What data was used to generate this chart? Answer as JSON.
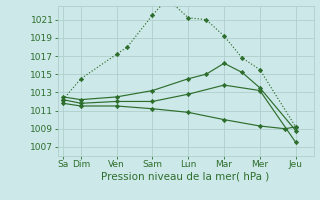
{
  "background_color": "#cde8e8",
  "grid_color": "#b0d0cc",
  "line_color": "#2d6e2d",
  "xlabel": "Pression niveau de la mer( hPa )",
  "xlabel_fontsize": 7.5,
  "tick_fontsize": 6.5,
  "yticks": [
    1007,
    1009,
    1011,
    1013,
    1015,
    1017,
    1019,
    1021
  ],
  "ylim": [
    1006.0,
    1022.5
  ],
  "xtick_labels": [
    "Sa",
    "Dim",
    "Ven",
    "Sam",
    "Lun",
    "Mar",
    "Mer",
    "Jeu"
  ],
  "xtick_positions": [
    0,
    0.5,
    1.5,
    2.5,
    3.5,
    4.5,
    5.5,
    6.5
  ],
  "xlim": [
    -0.15,
    7.0
  ],
  "lines": [
    {
      "style": "dotted",
      "x": [
        0,
        0.5,
        1.5,
        1.8,
        2.5,
        2.8,
        3.0,
        3.5,
        4.0,
        4.5,
        5.0,
        5.5,
        6.5
      ],
      "y": [
        1012.2,
        1014.5,
        1017.2,
        1018.0,
        1021.5,
        1022.8,
        1023.0,
        1021.2,
        1021.0,
        1019.2,
        1016.8,
        1015.5,
        1009.2
      ]
    },
    {
      "style": "solid",
      "x": [
        0,
        0.5,
        1.5,
        2.5,
        3.5,
        4.0,
        4.5,
        5.0,
        5.5,
        6.5
      ],
      "y": [
        1012.5,
        1012.2,
        1012.5,
        1013.2,
        1014.5,
        1015.0,
        1016.2,
        1015.2,
        1013.5,
        1008.8
      ]
    },
    {
      "style": "solid",
      "x": [
        0,
        0.5,
        1.5,
        2.5,
        3.5,
        4.5,
        5.5,
        6.5
      ],
      "y": [
        1012.2,
        1011.8,
        1012.0,
        1012.0,
        1012.8,
        1013.8,
        1013.2,
        1007.5
      ]
    },
    {
      "style": "solid",
      "x": [
        0,
        0.5,
        1.5,
        2.5,
        3.5,
        4.5,
        5.5,
        6.2,
        6.5
      ],
      "y": [
        1011.8,
        1011.5,
        1011.5,
        1011.2,
        1010.8,
        1010.0,
        1009.3,
        1009.0,
        1009.2
      ]
    }
  ]
}
